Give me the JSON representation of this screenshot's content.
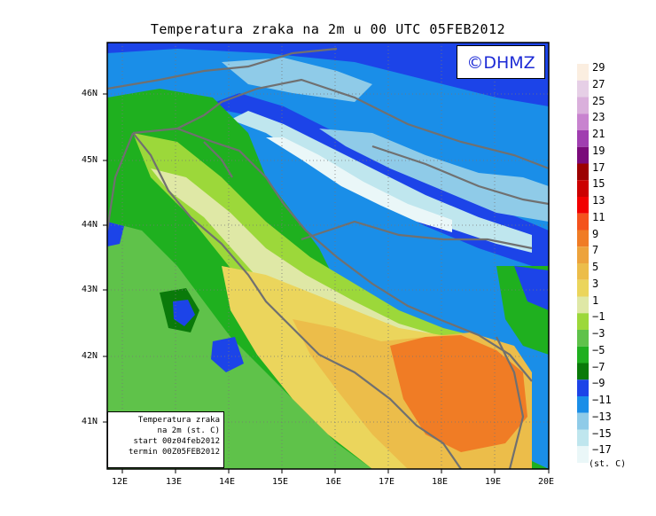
{
  "title": "Temperatura zraka na 2m u 00 UTC 05FEB2012",
  "watermark": "©DHMZ",
  "x_ticks": [
    "12E",
    "13E",
    "14E",
    "15E",
    "16E",
    "17E",
    "18E",
    "19E",
    "20E"
  ],
  "y_ticks": [
    "46N",
    "45N",
    "44N",
    "43N",
    "42N",
    "41N"
  ],
  "colorbar": {
    "labels": [
      "29",
      "27",
      "25",
      "23",
      "21",
      "19",
      "17",
      "15",
      "13",
      "11",
      "9",
      "7",
      "5",
      "3",
      "1",
      "−1",
      "−3",
      "−5",
      "−7",
      "−9",
      "−11",
      "−13",
      "−15",
      "−17"
    ],
    "colors": [
      "#fbeee0",
      "#e6cfe6",
      "#dab0dc",
      "#c883cf",
      "#a03eb0",
      "#7a0a7a",
      "#9c0000",
      "#cc0000",
      "#f20000",
      "#f4531d",
      "#f07c25",
      "#eda33c",
      "#ecbd4a",
      "#ebd55c",
      "#dfe8a6",
      "#9cd83a",
      "#5fc24a",
      "#1fb01f",
      "#0a7a0a",
      "#1c44e8",
      "#1a8ee8",
      "#8fcbe8",
      "#bfe6ee",
      "#eaf7f8"
    ],
    "units": "(st. C)"
  },
  "info_box": {
    "line1": "Temperatura zraka",
    "line2": "na 2m (st. C)",
    "line3": "start 00z04feb2012",
    "line4": "termin 00Z05FEB2012"
  }
}
